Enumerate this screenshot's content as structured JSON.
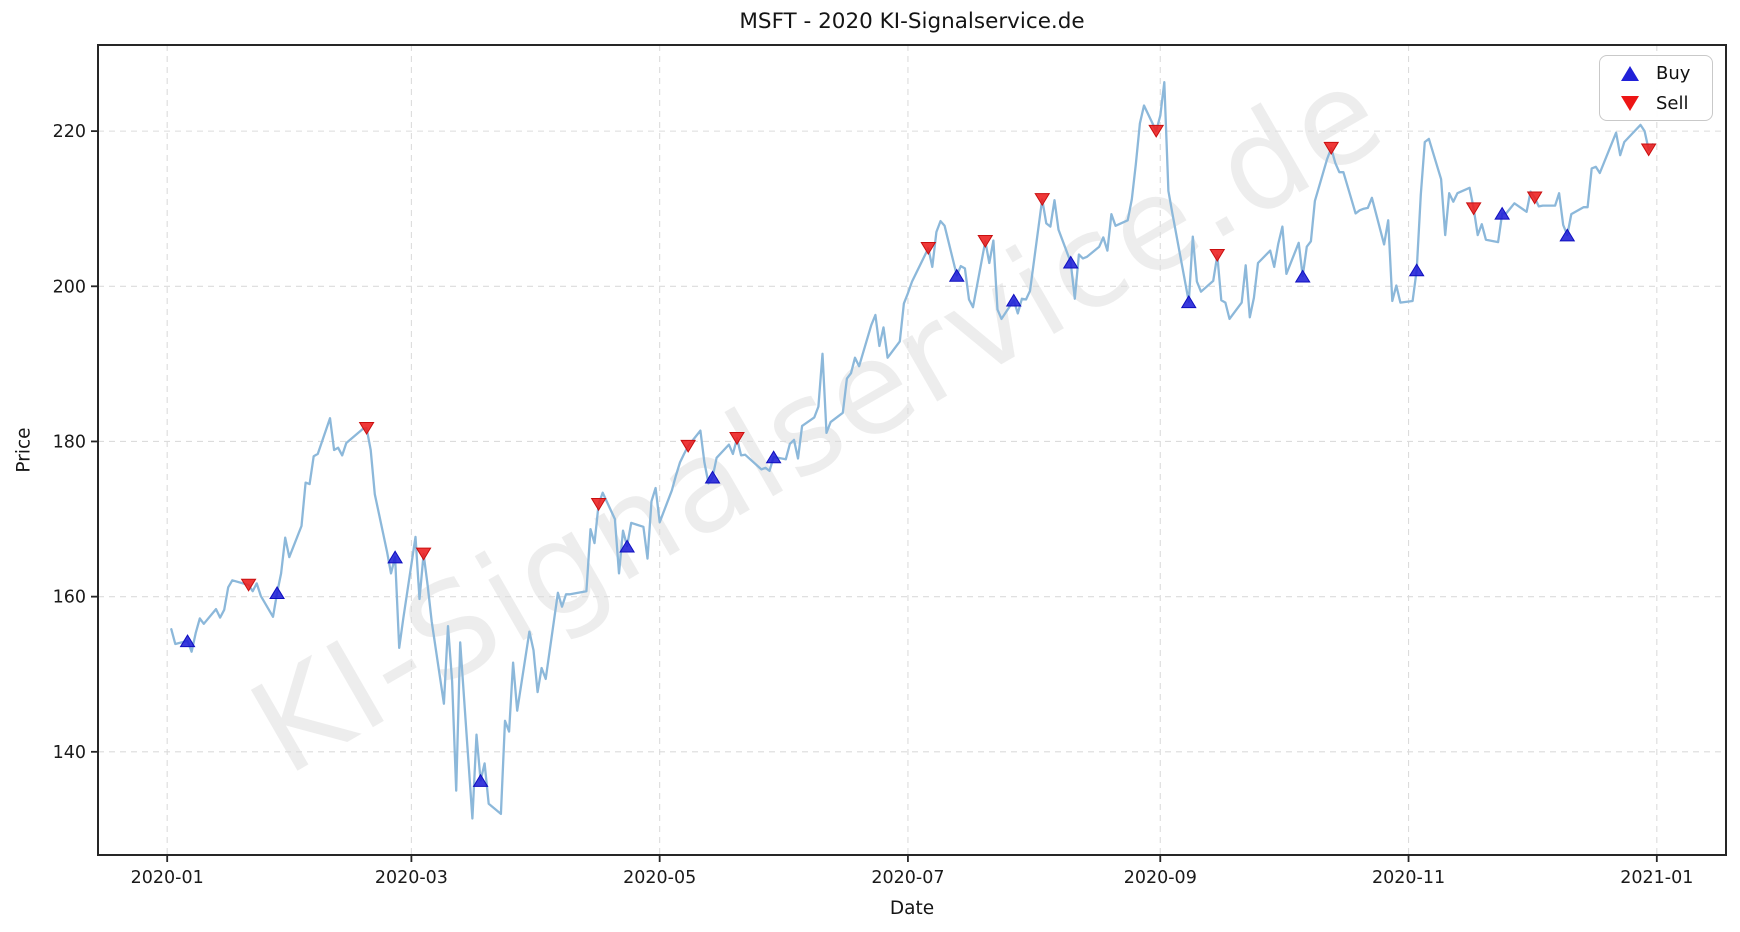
{
  "title": "MSFT - 2020 KI-Signalservice.de",
  "watermark": "KI-Signalservice.de",
  "legend": {
    "buy_label": "Buy",
    "sell_label": "Sell",
    "position": "upper right"
  },
  "colors": {
    "line": "#8cb8da",
    "buy_fill": "#1f1fd7",
    "buy_edge": "#0f0fbf",
    "sell_fill": "#ed1c1c",
    "sell_edge": "#c90f0f",
    "grid": "#dcdcdc",
    "spine": "#262626",
    "text": "#1a1a1a",
    "watermark": "rgba(0,0,0,0.072)"
  },
  "chart_data": {
    "type": "line",
    "title": "MSFT - 2020 KI-Signalservice.de",
    "xlabel": "Date",
    "ylabel": "Price",
    "grid": true,
    "legend_position": "upper right",
    "xlim": [
      "2019-12-15",
      "2021-01-18"
    ],
    "ylim": [
      126.7,
      231.1
    ],
    "yticks": [
      140,
      160,
      180,
      200,
      220
    ],
    "xticks": [
      {
        "label": "2020-01",
        "date": "2020-01-01"
      },
      {
        "label": "2020-03",
        "date": "2020-03-01"
      },
      {
        "label": "2020-05",
        "date": "2020-05-01"
      },
      {
        "label": "2020-07",
        "date": "2020-07-01"
      },
      {
        "label": "2020-09",
        "date": "2020-09-01"
      },
      {
        "label": "2020-11",
        "date": "2020-11-01"
      },
      {
        "label": "2021-01",
        "date": "2021-01-01"
      }
    ],
    "series": [
      {
        "name": "MSFT price",
        "dates": [
          "2020-01-02",
          "2020-01-03",
          "2020-01-06",
          "2020-01-07",
          "2020-01-08",
          "2020-01-09",
          "2020-01-10",
          "2020-01-13",
          "2020-01-14",
          "2020-01-15",
          "2020-01-16",
          "2020-01-17",
          "2020-01-21",
          "2020-01-22",
          "2020-01-23",
          "2020-01-24",
          "2020-01-27",
          "2020-01-28",
          "2020-01-29",
          "2020-01-30",
          "2020-01-31",
          "2020-02-03",
          "2020-02-04",
          "2020-02-05",
          "2020-02-06",
          "2020-02-07",
          "2020-02-10",
          "2020-02-11",
          "2020-02-12",
          "2020-02-13",
          "2020-02-14",
          "2020-02-18",
          "2020-02-19",
          "2020-02-20",
          "2020-02-21",
          "2020-02-24",
          "2020-02-25",
          "2020-02-26",
          "2020-02-27",
          "2020-02-28",
          "2020-03-02",
          "2020-03-03",
          "2020-03-04",
          "2020-03-05",
          "2020-03-06",
          "2020-03-09",
          "2020-03-10",
          "2020-03-11",
          "2020-03-12",
          "2020-03-13",
          "2020-03-16",
          "2020-03-17",
          "2020-03-18",
          "2020-03-19",
          "2020-03-20",
          "2020-03-23",
          "2020-03-24",
          "2020-03-25",
          "2020-03-26",
          "2020-03-27",
          "2020-03-30",
          "2020-03-31",
          "2020-04-01",
          "2020-04-02",
          "2020-04-03",
          "2020-04-06",
          "2020-04-07",
          "2020-04-08",
          "2020-04-09",
          "2020-04-13",
          "2020-04-14",
          "2020-04-15",
          "2020-04-16",
          "2020-04-17",
          "2020-04-20",
          "2020-04-21",
          "2020-04-22",
          "2020-04-23",
          "2020-04-24",
          "2020-04-27",
          "2020-04-28",
          "2020-04-29",
          "2020-04-30",
          "2020-05-01",
          "2020-05-04",
          "2020-05-05",
          "2020-05-06",
          "2020-05-07",
          "2020-05-08",
          "2020-05-11",
          "2020-05-12",
          "2020-05-13",
          "2020-05-14",
          "2020-05-15",
          "2020-05-18",
          "2020-05-19",
          "2020-05-20",
          "2020-05-21",
          "2020-05-22",
          "2020-05-26",
          "2020-05-27",
          "2020-05-28",
          "2020-05-29",
          "2020-06-01",
          "2020-06-02",
          "2020-06-03",
          "2020-06-04",
          "2020-06-05",
          "2020-06-08",
          "2020-06-09",
          "2020-06-10",
          "2020-06-11",
          "2020-06-12",
          "2020-06-15",
          "2020-06-16",
          "2020-06-17",
          "2020-06-18",
          "2020-06-19",
          "2020-06-22",
          "2020-06-23",
          "2020-06-24",
          "2020-06-25",
          "2020-06-26",
          "2020-06-29",
          "2020-06-30",
          "2020-07-01",
          "2020-07-02",
          "2020-07-06",
          "2020-07-07",
          "2020-07-08",
          "2020-07-09",
          "2020-07-10",
          "2020-07-13",
          "2020-07-14",
          "2020-07-15",
          "2020-07-16",
          "2020-07-17",
          "2020-07-20",
          "2020-07-21",
          "2020-07-22",
          "2020-07-23",
          "2020-07-24",
          "2020-07-27",
          "2020-07-28",
          "2020-07-29",
          "2020-07-30",
          "2020-07-31",
          "2020-08-03",
          "2020-08-04",
          "2020-08-05",
          "2020-08-06",
          "2020-08-07",
          "2020-08-10",
          "2020-08-11",
          "2020-08-12",
          "2020-08-13",
          "2020-08-14",
          "2020-08-17",
          "2020-08-18",
          "2020-08-19",
          "2020-08-20",
          "2020-08-21",
          "2020-08-24",
          "2020-08-25",
          "2020-08-26",
          "2020-08-27",
          "2020-08-28",
          "2020-08-31",
          "2020-09-01",
          "2020-09-02",
          "2020-09-03",
          "2020-09-04",
          "2020-09-08",
          "2020-09-09",
          "2020-09-10",
          "2020-09-11",
          "2020-09-14",
          "2020-09-15",
          "2020-09-16",
          "2020-09-17",
          "2020-09-18",
          "2020-09-21",
          "2020-09-22",
          "2020-09-23",
          "2020-09-24",
          "2020-09-25",
          "2020-09-28",
          "2020-09-29",
          "2020-09-30",
          "2020-10-01",
          "2020-10-02",
          "2020-10-05",
          "2020-10-06",
          "2020-10-07",
          "2020-10-08",
          "2020-10-09",
          "2020-10-12",
          "2020-10-13",
          "2020-10-14",
          "2020-10-15",
          "2020-10-16",
          "2020-10-19",
          "2020-10-20",
          "2020-10-21",
          "2020-10-22",
          "2020-10-23",
          "2020-10-26",
          "2020-10-27",
          "2020-10-28",
          "2020-10-29",
          "2020-10-30",
          "2020-11-02",
          "2020-11-03",
          "2020-11-04",
          "2020-11-05",
          "2020-11-06",
          "2020-11-09",
          "2020-11-10",
          "2020-11-11",
          "2020-11-12",
          "2020-11-13",
          "2020-11-16",
          "2020-11-17",
          "2020-11-18",
          "2020-11-19",
          "2020-11-20",
          "2020-11-23",
          "2020-11-24",
          "2020-11-25",
          "2020-11-27",
          "2020-11-30",
          "2020-12-01",
          "2020-12-02",
          "2020-12-03",
          "2020-12-04",
          "2020-12-07",
          "2020-12-08",
          "2020-12-09",
          "2020-12-10",
          "2020-12-11",
          "2020-12-14",
          "2020-12-15",
          "2020-12-16",
          "2020-12-17",
          "2020-12-18",
          "2020-12-21",
          "2020-12-22",
          "2020-12-23",
          "2020-12-24",
          "2020-12-28",
          "2020-12-29",
          "2020-12-30",
          "2020-12-31"
        ],
        "values": [
          155.8,
          153.9,
          154.3,
          152.9,
          155.3,
          157.2,
          156.5,
          158.4,
          157.3,
          158.3,
          161.2,
          162.1,
          161.5,
          160.7,
          161.7,
          160.1,
          157.4,
          160.5,
          163.0,
          167.6,
          165.1,
          169.1,
          174.7,
          174.5,
          178.1,
          178.4,
          183.0,
          178.9,
          179.2,
          178.2,
          179.8,
          181.6,
          181.7,
          178.9,
          173.2,
          165.8,
          163.0,
          165.1,
          153.4,
          157.2,
          167.7,
          159.7,
          165.5,
          161.4,
          156.8,
          146.2,
          156.2,
          149.1,
          135.0,
          154.1,
          131.4,
          142.2,
          136.3,
          138.5,
          133.3,
          132.0,
          144.0,
          142.6,
          151.5,
          145.3,
          155.5,
          153.1,
          147.7,
          150.8,
          149.4,
          160.5,
          158.7,
          160.3,
          160.3,
          160.7,
          168.7,
          166.9,
          171.9,
          173.4,
          170.0,
          163.0,
          168.5,
          166.5,
          169.5,
          169.0,
          164.9,
          172.3,
          174.0,
          169.6,
          173.7,
          175.6,
          177.3,
          178.4,
          179.4,
          181.4,
          177.3,
          174.6,
          175.4,
          177.9,
          179.6,
          178.4,
          180.4,
          178.2,
          178.3,
          176.4,
          176.6,
          176.2,
          178.0,
          177.7,
          179.7,
          180.2,
          177.8,
          182.0,
          183.1,
          184.5,
          191.3,
          181.1,
          182.5,
          183.7,
          188.1,
          188.8,
          190.8,
          189.7,
          195.0,
          196.3,
          192.3,
          194.7,
          190.8,
          192.9,
          197.8,
          199.1,
          200.6,
          204.9,
          202.5,
          207.0,
          208.4,
          207.8,
          201.4,
          202.6,
          202.3,
          198.3,
          197.3,
          205.8,
          203.0,
          205.9,
          197.0,
          195.8,
          198.2,
          196.5,
          198.4,
          198.3,
          199.4,
          211.2,
          208.1,
          207.7,
          211.1,
          207.3,
          203.1,
          198.4,
          204.1,
          203.6,
          203.8,
          205.1,
          206.3,
          204.6,
          209.3,
          207.8,
          208.5,
          211.2,
          215.7,
          221.0,
          223.3,
          220.0,
          222.0,
          226.3,
          212.3,
          209.3,
          198.0,
          206.4,
          200.6,
          199.3,
          200.7,
          204.0,
          198.2,
          197.9,
          195.8,
          197.9,
          202.7,
          196.0,
          198.5,
          203.0,
          204.6,
          202.5,
          205.5,
          207.7,
          201.6,
          205.6,
          201.3,
          205.1,
          205.8,
          211.0,
          216.4,
          217.8,
          215.9,
          214.7,
          214.7,
          209.4,
          209.8,
          210.0,
          210.1,
          211.4,
          205.4,
          208.5,
          198.1,
          200.1,
          197.9,
          198.1,
          202.1,
          211.8,
          218.6,
          219.0,
          213.8,
          206.6,
          212.0,
          210.9,
          212.0,
          212.7,
          210.0,
          206.6,
          208.0,
          206.0,
          205.7,
          209.4,
          209.4,
          210.7,
          209.6,
          212.2,
          211.4,
          210.3,
          210.4,
          210.4,
          212.0,
          207.9,
          206.6,
          209.3,
          210.2,
          210.2,
          215.2,
          215.4,
          214.6,
          218.5,
          219.8,
          216.9,
          218.6,
          220.8,
          220.0,
          217.6,
          218.3
        ]
      }
    ],
    "buy_signals": [
      {
        "date": "2020-01-06",
        "price": 154.3
      },
      {
        "date": "2020-01-28",
        "price": 160.5
      },
      {
        "date": "2020-02-26",
        "price": 165.1
      },
      {
        "date": "2020-03-18",
        "price": 136.3
      },
      {
        "date": "2020-04-23",
        "price": 166.5
      },
      {
        "date": "2020-05-14",
        "price": 175.4
      },
      {
        "date": "2020-05-29",
        "price": 178.0
      },
      {
        "date": "2020-07-13",
        "price": 201.4
      },
      {
        "date": "2020-07-27",
        "price": 198.2
      },
      {
        "date": "2020-08-10",
        "price": 203.1
      },
      {
        "date": "2020-09-08",
        "price": 198.0
      },
      {
        "date": "2020-10-06",
        "price": 201.3
      },
      {
        "date": "2020-11-03",
        "price": 202.1
      },
      {
        "date": "2020-11-24",
        "price": 209.4
      },
      {
        "date": "2020-12-10",
        "price": 206.6
      }
    ],
    "sell_signals": [
      {
        "date": "2020-01-21",
        "price": 161.5
      },
      {
        "date": "2020-02-19",
        "price": 181.7
      },
      {
        "date": "2020-03-04",
        "price": 165.5
      },
      {
        "date": "2020-04-16",
        "price": 171.9
      },
      {
        "date": "2020-05-08",
        "price": 179.4
      },
      {
        "date": "2020-05-20",
        "price": 180.4
      },
      {
        "date": "2020-07-06",
        "price": 204.9
      },
      {
        "date": "2020-07-20",
        "price": 205.8
      },
      {
        "date": "2020-08-03",
        "price": 211.2
      },
      {
        "date": "2020-08-31",
        "price": 220.0
      },
      {
        "date": "2020-09-15",
        "price": 204.0
      },
      {
        "date": "2020-10-13",
        "price": 217.8
      },
      {
        "date": "2020-11-17",
        "price": 210.0
      },
      {
        "date": "2020-12-02",
        "price": 211.4
      },
      {
        "date": "2020-12-30",
        "price": 217.6
      }
    ]
  }
}
